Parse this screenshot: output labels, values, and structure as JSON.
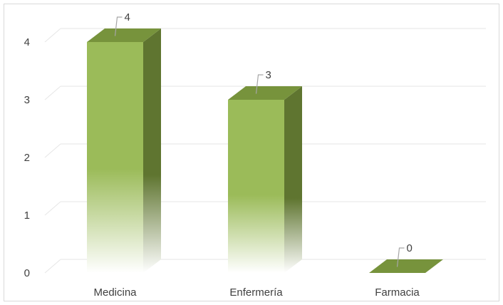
{
  "chart_data": {
    "type": "bar",
    "style": "3d-column",
    "categories": [
      "Medicina",
      "Enfermería",
      "Farmacia"
    ],
    "values": [
      4,
      3,
      0
    ],
    "data_labels": [
      "4",
      "3",
      "0"
    ],
    "y_ticks": [
      "0",
      "1",
      "2",
      "3",
      "4"
    ],
    "ylim": [
      0,
      4
    ],
    "grid": true,
    "legend": "none",
    "colors": {
      "front": "#9bbb59",
      "side": "#5f7530",
      "top": "#77933c",
      "grid": "#e6e6e6",
      "leader": "#a6a6a6"
    }
  }
}
